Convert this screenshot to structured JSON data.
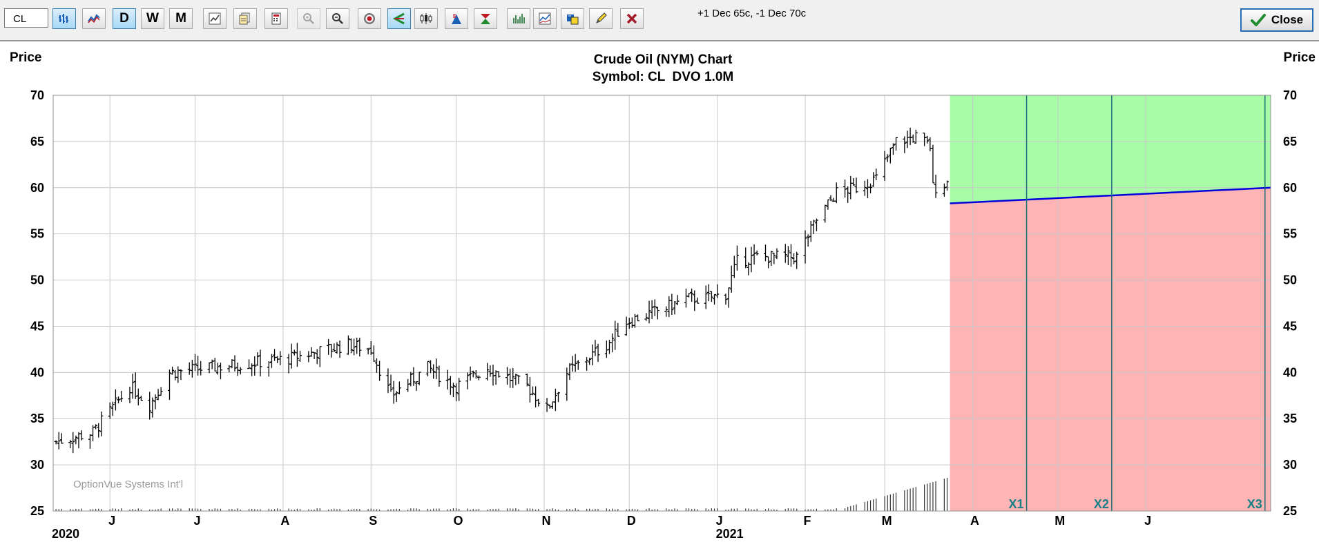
{
  "toolbar": {
    "symbol_value": "CL",
    "status_text": "+1 Dec 65c, -1 Dec 70c",
    "close_label": "Close",
    "buttons": [
      {
        "name": "bar-chart-icon",
        "active": true
      },
      {
        "name": "line-chart-icon"
      },
      {
        "name": "daily-button",
        "label": "D",
        "active": true
      },
      {
        "name": "weekly-button",
        "label": "W"
      },
      {
        "name": "monthly-button",
        "label": "M"
      },
      {
        "name": "chart-settings-icon"
      },
      {
        "name": "copy-chart-icon"
      },
      {
        "name": "calculator-icon"
      },
      {
        "name": "zoom-in-icon",
        "dim": true
      },
      {
        "name": "zoom-out-icon"
      },
      {
        "name": "target-icon"
      },
      {
        "name": "trendline-icon",
        "active": true
      },
      {
        "name": "candlestick-icon"
      },
      {
        "name": "earnings-icon"
      },
      {
        "name": "dividend-icon"
      },
      {
        "name": "volume-bars-icon"
      },
      {
        "name": "indicator-icon"
      },
      {
        "name": "overlay-icon"
      },
      {
        "name": "pencil-icon"
      },
      {
        "name": "delete-icon"
      }
    ]
  },
  "chart_data": {
    "type": "bar",
    "subtype": "ohlc",
    "title": "Crude Oil (NYM) Chart",
    "subtitle": "Symbol: CL  DVO 1.0M",
    "ylabel_left": "Price",
    "ylabel_right": "Price",
    "ylim": [
      25,
      70
    ],
    "yticks": [
      25,
      30,
      35,
      40,
      45,
      50,
      55,
      60,
      65,
      70
    ],
    "grid": true,
    "watermark": "OptionVue Systems Int'l",
    "x_range": [
      "2020-05-12",
      "2021-07-15"
    ],
    "last_data_date": "2021-03-23",
    "x_month_labels": [
      {
        "label": "J",
        "date": "2020-06-01"
      },
      {
        "label": "J",
        "date": "2020-07-01"
      },
      {
        "label": "A",
        "date": "2020-08-01"
      },
      {
        "label": "S",
        "date": "2020-09-01"
      },
      {
        "label": "O",
        "date": "2020-10-01"
      },
      {
        "label": "N",
        "date": "2020-11-01"
      },
      {
        "label": "D",
        "date": "2020-12-01"
      },
      {
        "label": "J",
        "date": "2021-01-01"
      },
      {
        "label": "F",
        "date": "2021-02-01"
      },
      {
        "label": "M",
        "date": "2021-03-01"
      },
      {
        "label": "A",
        "date": "2021-04-01"
      },
      {
        "label": "M",
        "date": "2021-05-01"
      },
      {
        "label": "J",
        "date": "2021-06-01"
      }
    ],
    "x_year_labels": [
      {
        "label": "2020",
        "date": "2020-05-12"
      },
      {
        "label": "2021",
        "date": "2021-01-01"
      }
    ],
    "price_anchors": [
      [
        "2020-05-13",
        32.5
      ],
      [
        "2020-05-26",
        33.5
      ],
      [
        "2020-06-08",
        38.5
      ],
      [
        "2020-06-15",
        36.5
      ],
      [
        "2020-06-22",
        40.0
      ],
      [
        "2020-07-06",
        40.5
      ],
      [
        "2020-08-03",
        41.5
      ],
      [
        "2020-08-24",
        43.0
      ],
      [
        "2020-09-01",
        42.5
      ],
      [
        "2020-09-08",
        37.5
      ],
      [
        "2020-09-21",
        40.5
      ],
      [
        "2020-10-01",
        38.5
      ],
      [
        "2020-10-12",
        40.5
      ],
      [
        "2020-10-26",
        38.5
      ],
      [
        "2020-11-02",
        36.0
      ],
      [
        "2020-11-09",
        40.0
      ],
      [
        "2020-11-23",
        43.0
      ],
      [
        "2020-11-30",
        45.5
      ],
      [
        "2020-12-14",
        47.0
      ],
      [
        "2020-12-21",
        48.0
      ],
      [
        "2020-12-28",
        48.0
      ],
      [
        "2021-01-04",
        48.5
      ],
      [
        "2021-01-08",
        52.0
      ],
      [
        "2021-01-15",
        52.5
      ],
      [
        "2021-01-29",
        52.5
      ],
      [
        "2021-02-05",
        56.5
      ],
      [
        "2021-02-12",
        59.5
      ],
      [
        "2021-02-19",
        60.0
      ],
      [
        "2021-02-26",
        61.0
      ],
      [
        "2021-03-05",
        65.0
      ],
      [
        "2021-03-12",
        65.5
      ],
      [
        "2021-03-17",
        64.5
      ],
      [
        "2021-03-18",
        60.0
      ],
      [
        "2021-03-23",
        60.5
      ]
    ],
    "volume_ramp_start": "2021-02-16",
    "forecast_line": {
      "start": [
        "2021-03-24",
        58.3
      ],
      "end": [
        "2021-07-15",
        60.0
      ],
      "color": "#0000dd"
    },
    "profit_zone": {
      "from": "2021-03-24",
      "above_line_color": "#a8fca8",
      "below_line_color": "#fcb4b4"
    },
    "expirations": [
      {
        "label": "X1",
        "date": "2021-04-20"
      },
      {
        "label": "X2",
        "date": "2021-05-20"
      },
      {
        "label": "X3",
        "date": "2021-07-13"
      }
    ]
  }
}
